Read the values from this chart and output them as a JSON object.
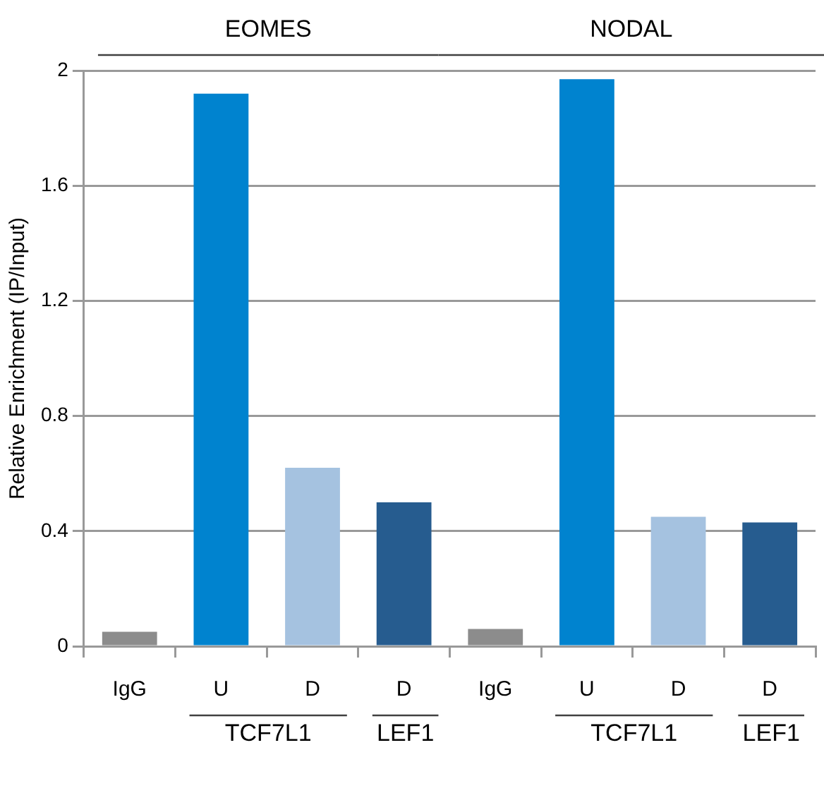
{
  "chart_data": {
    "type": "bar",
    "ylabel": "Relative Enrichment (IP/Input)",
    "categories": [
      "IgG",
      "U",
      "D",
      "D",
      "IgG",
      "U",
      "D",
      "D"
    ],
    "values": [
      0.05,
      1.92,
      0.62,
      0.5,
      0.06,
      1.97,
      0.45,
      0.43
    ],
    "colors": [
      "#8c8c8c",
      "#0083cf",
      "#a5c2e0",
      "#265c8f",
      "#8c8c8c",
      "#0083cf",
      "#a5c2e0",
      "#265c8f"
    ],
    "ylim": [
      0,
      2
    ],
    "yticks": [
      0,
      0.4,
      0.8,
      1.2,
      1.6,
      2
    ],
    "grid": "y",
    "legend": false,
    "annotations": [
      "EOMES",
      "NODAL",
      "TCF7L1",
      "LEF1",
      "TCF7L1",
      "LEF1"
    ]
  }
}
